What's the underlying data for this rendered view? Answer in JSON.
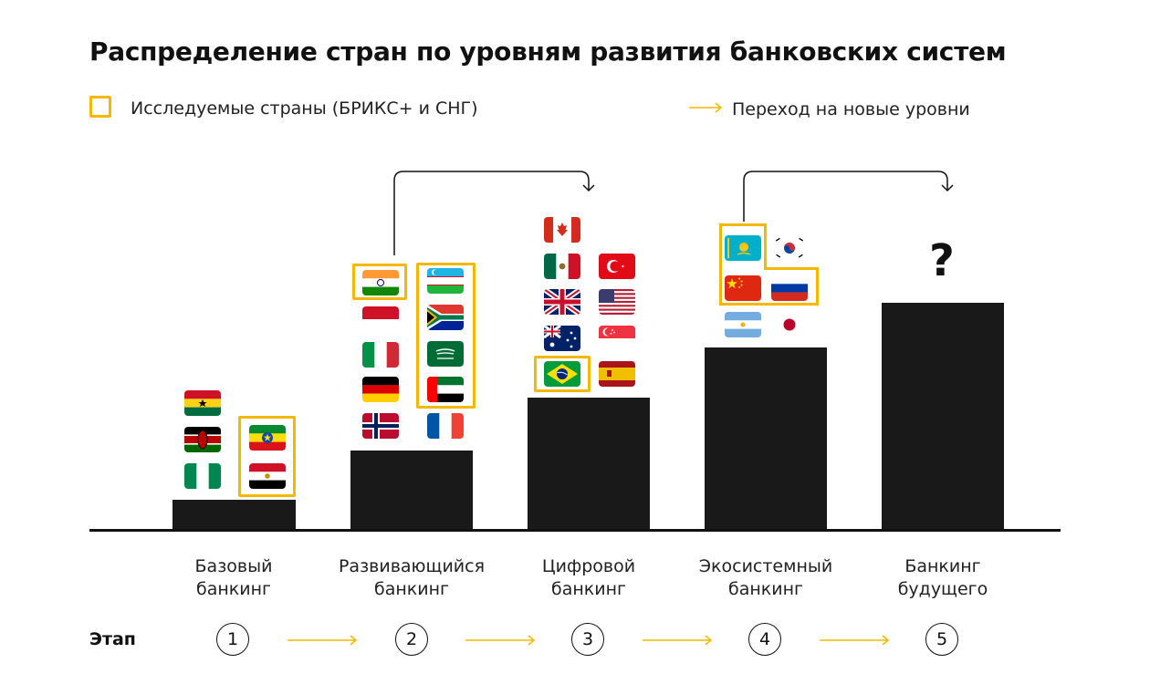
{
  "title": "Распределение стран по уровням развития банковских систем",
  "legend": {
    "studied": "Исследуемые страны (БРИКС+ и СНГ)",
    "transition": "Переход на новые уровни"
  },
  "colors": {
    "highlight": "#f5b800",
    "bar": "#191919"
  },
  "levels": [
    {
      "label_line1": "Базовый",
      "label_line2": "банкинг",
      "stage": "1"
    },
    {
      "label_line1": "Развивающийся",
      "label_line2": "банкинг",
      "stage": "2"
    },
    {
      "label_line1": "Цифровой",
      "label_line2": "банкинг",
      "stage": "3"
    },
    {
      "label_line1": "Экосистемный",
      "label_line2": "банкинг",
      "stage": "4"
    },
    {
      "label_line1": "Банкинг",
      "label_line2": "будущего",
      "stage": "5"
    }
  ],
  "stage_label": "Этап",
  "future_mark": "?",
  "countries": {
    "level1": [
      "Ghana",
      "Kenya",
      "Nigeria",
      "Ethiopia",
      "Egypt"
    ],
    "level2": [
      "India",
      "Indonesia",
      "Italy",
      "Germany",
      "Norway",
      "Uzbekistan",
      "South Africa",
      "Saudi Arabia",
      "UAE",
      "France"
    ],
    "level3": [
      "Canada",
      "Mexico",
      "United Kingdom",
      "Australia",
      "Brazil",
      "Turkey",
      "USA",
      "Singapore",
      "Spain"
    ],
    "level4": [
      "Kazakhstan",
      "South Korea",
      "China",
      "Russia",
      "Argentina",
      "Japan"
    ]
  },
  "highlighted_countries": [
    "Ethiopia",
    "Egypt",
    "India",
    "Uzbekistan",
    "South Africa",
    "Saudi Arabia",
    "UAE",
    "Brazil",
    "Kazakhstan",
    "China",
    "Russia"
  ]
}
